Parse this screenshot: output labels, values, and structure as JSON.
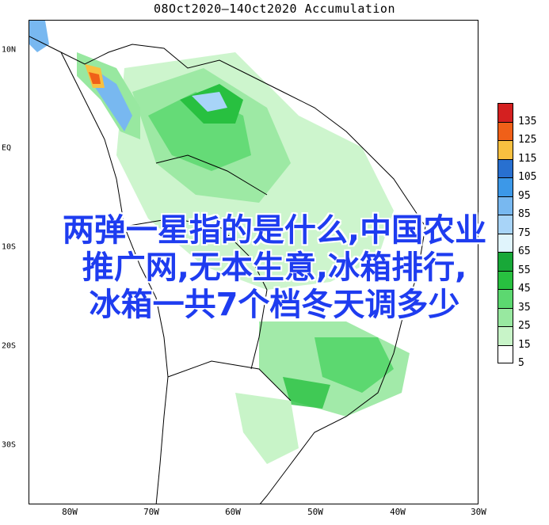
{
  "title": "08Oct2020—14Oct2020 Accumulation",
  "latitude_labels": [
    "10N",
    "EQ",
    "10S",
    "20S",
    "30S"
  ],
  "longitude_labels": [
    "80W",
    "70W",
    "60W",
    "50W",
    "40W",
    "30W"
  ],
  "legend": {
    "entries": [
      {
        "value": "135",
        "color": "#d42020"
      },
      {
        "value": "125",
        "color": "#f06018"
      },
      {
        "value": "115",
        "color": "#f8c040"
      },
      {
        "value": "105",
        "color": "#2870d0"
      },
      {
        "value": "95",
        "color": "#3c98e8"
      },
      {
        "value": "85",
        "color": "#78b8f0"
      },
      {
        "value": "75",
        "color": "#a8d4f8"
      },
      {
        "value": "65",
        "color": "#e0f4fc"
      },
      {
        "value": "55",
        "color": "#18a838"
      },
      {
        "value": "45",
        "color": "#28c040"
      },
      {
        "value": "35",
        "color": "#5cd870"
      },
      {
        "value": "25",
        "color": "#98e8a0"
      },
      {
        "value": "15",
        "color": "#c8f4c8"
      },
      {
        "value": "5",
        "color": "#ffffff"
      }
    ]
  },
  "overlay_text": [
    "两弹一星指的是什么,中国农业",
    "推广网,无本生意,冰箱排行,",
    "冰箱一共7个档冬天调多少"
  ]
}
